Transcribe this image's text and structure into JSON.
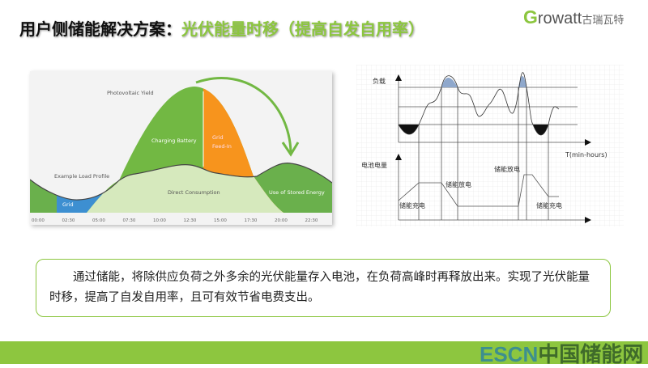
{
  "title": {
    "main": "用户侧储能解决方案：",
    "highlight": "光伏能量时移（提高自发自用率）"
  },
  "logo": {
    "brand": "Growatt",
    "cn": "古瑞瓦特"
  },
  "left_diagram": {
    "labels": {
      "pv": "Photovoltaic Yield",
      "load": "Example Load Profile",
      "charging": "Charging Battery",
      "feed1": "Grid",
      "feed2": "Feed-In",
      "direct": "Direct Consumption",
      "stored": "Use of Stored Energy",
      "grid": "Grid"
    },
    "ticks": [
      "00:00",
      "02:30",
      "05:00",
      "07:30",
      "10:00",
      "12:30",
      "15:00",
      "17:30",
      "20:00",
      "22:30"
    ],
    "colors": {
      "green": "#72b843",
      "orange": "#f7941d",
      "blue": "#3d8fd1",
      "light": "#d6e9bd"
    }
  },
  "right_diagram": {
    "labels": {
      "load": "负载",
      "time": "T(min-hours)",
      "battery": "电池电量",
      "charge1": "储能充电",
      "discharge1": "储能放电",
      "discharge2": "储能放电",
      "charge2": "储能充电"
    }
  },
  "text": "通过储能，将除供应负荷之外多余的光伏能量存入电池，在负荷高峰时再释放出来。实现了光伏能量时移，提高了自发自用率，且可有效节省电费支出。",
  "footer": {
    "escn": "ESCN",
    "cn": "中国储能网"
  }
}
